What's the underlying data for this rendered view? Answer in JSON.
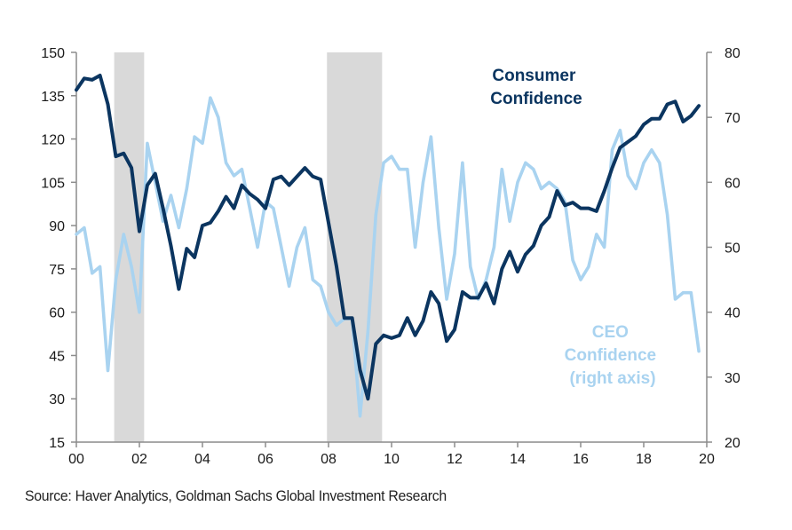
{
  "chart_data": {
    "type": "line",
    "title": "",
    "xlabel": "",
    "ylabel_left": "",
    "ylabel_right": "",
    "x_range": [
      2000,
      2020
    ],
    "x_ticks": [
      2000,
      2002,
      2004,
      2006,
      2008,
      2010,
      2012,
      2014,
      2016,
      2018,
      2020
    ],
    "x_tick_labels": [
      "00",
      "02",
      "04",
      "06",
      "08",
      "10",
      "12",
      "14",
      "16",
      "18",
      "20"
    ],
    "y_left": {
      "range": [
        15,
        150
      ],
      "ticks": [
        15,
        30,
        45,
        60,
        75,
        90,
        105,
        120,
        135,
        150
      ]
    },
    "y_right": {
      "range": [
        20,
        80
      ],
      "ticks": [
        20,
        30,
        40,
        50,
        60,
        70,
        80
      ]
    },
    "grid": false,
    "recessions": [
      {
        "start": 2001.2,
        "end": 2002.15
      },
      {
        "start": 2007.95,
        "end": 2009.7
      }
    ],
    "series": [
      {
        "name": "Consumer Confidence",
        "axis": "left",
        "color": "#0b3560",
        "x": [
          2000.0,
          2000.25,
          2000.5,
          2000.75,
          2001.0,
          2001.25,
          2001.5,
          2001.75,
          2002.0,
          2002.25,
          2002.5,
          2002.75,
          2003.0,
          2003.25,
          2003.5,
          2003.75,
          2004.0,
          2004.25,
          2004.5,
          2004.75,
          2005.0,
          2005.25,
          2005.5,
          2005.75,
          2006.0,
          2006.25,
          2006.5,
          2006.75,
          2007.0,
          2007.25,
          2007.5,
          2007.75,
          2008.0,
          2008.25,
          2008.5,
          2008.75,
          2009.0,
          2009.25,
          2009.5,
          2009.75,
          2010.0,
          2010.25,
          2010.5,
          2010.75,
          2011.0,
          2011.25,
          2011.5,
          2011.75,
          2012.0,
          2012.25,
          2012.5,
          2012.75,
          2013.0,
          2013.25,
          2013.5,
          2013.75,
          2014.0,
          2014.25,
          2014.5,
          2014.75,
          2015.0,
          2015.25,
          2015.5,
          2015.75,
          2016.0,
          2016.25,
          2016.5,
          2016.75,
          2017.0,
          2017.25,
          2017.5,
          2017.75,
          2018.0,
          2018.25,
          2018.5,
          2018.75,
          2019.0,
          2019.25,
          2019.5,
          2019.75
        ],
        "values": [
          137,
          141,
          140.5,
          142,
          132,
          114,
          115,
          110,
          88,
          104,
          108,
          96,
          83,
          68,
          82,
          79,
          90,
          91,
          95,
          100,
          96,
          104,
          101,
          99,
          96,
          106,
          107,
          104,
          107,
          110,
          107,
          106,
          91,
          76,
          58,
          58,
          40,
          30,
          49,
          52,
          51,
          52,
          58,
          52,
          57,
          67,
          63,
          50,
          54,
          67,
          65,
          65,
          70,
          63,
          75,
          81,
          74,
          80,
          83,
          90,
          93,
          102,
          97,
          98,
          96,
          96,
          95,
          102,
          110,
          117,
          119,
          121,
          125,
          127,
          127,
          132,
          133,
          126,
          128,
          131.5
        ]
      },
      {
        "name": "CEO Confidence (right axis)",
        "axis": "right",
        "color": "#a9d3f0",
        "x": [
          2000.0,
          2000.25,
          2000.5,
          2000.75,
          2001.0,
          2001.25,
          2001.5,
          2001.75,
          2002.0,
          2002.25,
          2002.5,
          2002.75,
          2003.0,
          2003.25,
          2003.5,
          2003.75,
          2004.0,
          2004.25,
          2004.5,
          2004.75,
          2005.0,
          2005.25,
          2005.5,
          2005.75,
          2006.0,
          2006.25,
          2006.5,
          2006.75,
          2007.0,
          2007.25,
          2007.5,
          2007.75,
          2008.0,
          2008.25,
          2008.5,
          2008.75,
          2009.0,
          2009.25,
          2009.5,
          2009.75,
          2010.0,
          2010.25,
          2010.5,
          2010.75,
          2011.0,
          2011.25,
          2011.5,
          2011.75,
          2012.0,
          2012.25,
          2012.5,
          2012.75,
          2013.0,
          2013.25,
          2013.5,
          2013.75,
          2014.0,
          2014.25,
          2014.5,
          2014.75,
          2015.0,
          2015.25,
          2015.5,
          2015.75,
          2016.0,
          2016.25,
          2016.5,
          2016.75,
          2017.0,
          2017.25,
          2017.5,
          2017.75,
          2018.0,
          2018.25,
          2018.5,
          2018.75,
          2019.0,
          2019.25,
          2019.5,
          2019.75
        ],
        "values": [
          52,
          53,
          46,
          47,
          31,
          45,
          52,
          47,
          40,
          66,
          60,
          54,
          58,
          53,
          59,
          67,
          66,
          73,
          70,
          63,
          61,
          62,
          56,
          50,
          57,
          56,
          50,
          44,
          50,
          53,
          45,
          44,
          40,
          38,
          39,
          39,
          24,
          37,
          55,
          63,
          64,
          62,
          62,
          50,
          60,
          67,
          53,
          42,
          49,
          63,
          47,
          42,
          45,
          50,
          62,
          54,
          60,
          63,
          62,
          59,
          60,
          59,
          57,
          48,
          45,
          47,
          52,
          50,
          65,
          68,
          61,
          59,
          63,
          65,
          63,
          55,
          42,
          43,
          43,
          34
        ]
      }
    ],
    "annotations": [
      {
        "text_lines": [
          "Consumer",
          "Confidence"
        ],
        "series": "Consumer Confidence"
      },
      {
        "text_lines": [
          "CEO",
          "Confidence",
          "(right axis)"
        ],
        "series": "CEO Confidence (right axis)"
      }
    ]
  },
  "source": "Source: Haver Analytics, Goldman Sachs Global Investment Research"
}
